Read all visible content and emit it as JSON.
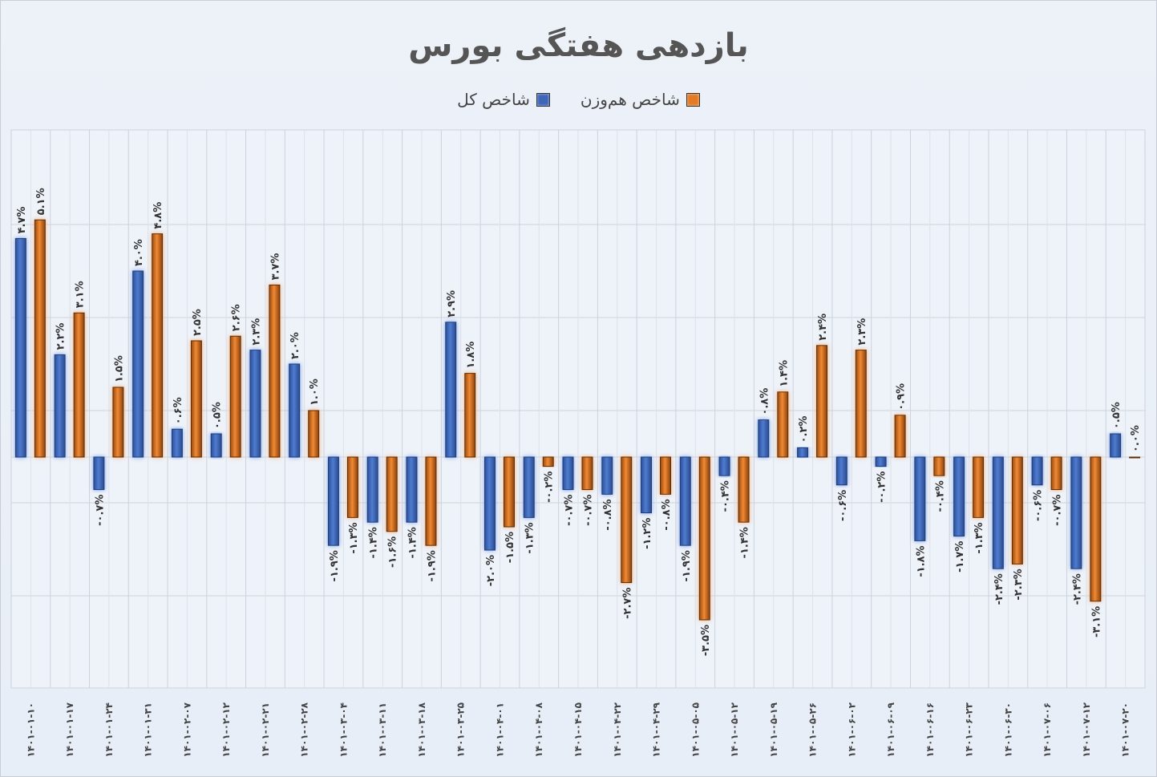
{
  "title": "بازدهی هفتگی بورس",
  "legend": {
    "items": [
      {
        "label": "شاخص هم‌وزن",
        "color": "#e37a26"
      },
      {
        "label": "شاخص کل",
        "color": "#3d65b8"
      }
    ]
  },
  "colors": {
    "total_index": "#3d65b8",
    "equal_weight_index": "#e37a26",
    "background": "#e9eef6",
    "grid": "#cdd2da"
  },
  "chart_data": {
    "type": "bar",
    "title": "بازدهی هفتگی بورس",
    "xlabel": "",
    "ylabel": "",
    "ylim": [
      -5,
      7
    ],
    "grid": true,
    "legend_position": "top",
    "value_format": "percent",
    "categories": [
      "1401-01-10",
      "1401-01-17",
      "1401-01-24",
      "1401-01-31",
      "1401-02-07",
      "1401-02-12",
      "1401-02-21",
      "1401-02-28",
      "1401-03-04",
      "1401-03-11",
      "1401-03-18",
      "1401-03-25",
      "1401-04-01",
      "1401-04-08",
      "1401-04-15",
      "1401-04-22",
      "1401-04-29",
      "1401-05-05",
      "1401-05-12",
      "1401-05-19",
      "1401-05-26",
      "1401-06-02",
      "1401-06-09",
      "1401-06-16",
      "1401-06-23",
      "1401-06-30",
      "1401-07-06",
      "1401-07-12",
      "1401-07-20"
    ],
    "series": [
      {
        "name": "شاخص کل",
        "color": "#3d65b8",
        "values": [
          4.7,
          2.2,
          -0.7,
          4.0,
          0.6,
          0.5,
          2.3,
          2.0,
          -1.9,
          -1.4,
          -1.4,
          2.9,
          -2.0,
          -1.3,
          -0.7,
          -0.8,
          -1.2,
          -1.9,
          -0.4,
          0.8,
          0.2,
          -0.6,
          -0.2,
          -1.8,
          -1.7,
          -2.4,
          -0.6,
          -2.4,
          0.5
        ]
      },
      {
        "name": "شاخص هم‌وزن",
        "color": "#e37a26",
        "values": [
          5.1,
          3.1,
          1.5,
          4.8,
          2.5,
          2.6,
          3.7,
          1.0,
          -1.3,
          -1.6,
          -1.9,
          1.8,
          -1.5,
          -0.2,
          -0.7,
          -2.7,
          -0.8,
          -3.5,
          -1.4,
          1.4,
          2.4,
          2.3,
          0.9,
          -0.4,
          -1.3,
          -2.3,
          -0.7,
          -3.1,
          0.0
        ]
      }
    ]
  }
}
